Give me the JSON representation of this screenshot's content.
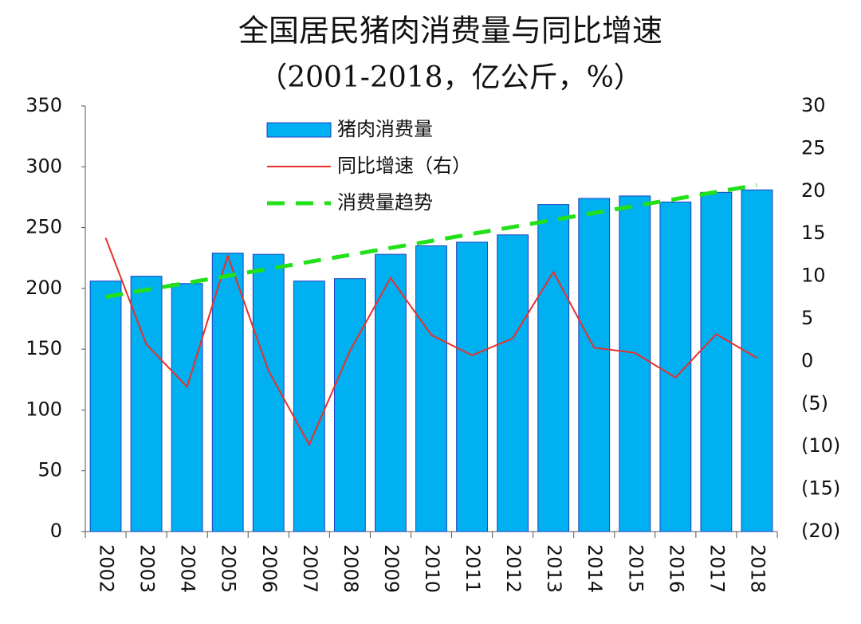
{
  "chart_data": {
    "type": "bar-line",
    "title": "全国居民猪肉消费量与同比增速",
    "subtitle": "（2001-2018，亿公斤，%）",
    "categories": [
      "2002",
      "2003",
      "2004",
      "2005",
      "2006",
      "2007",
      "2008",
      "2009",
      "2010",
      "2011",
      "2012",
      "2013",
      "2014",
      "2015",
      "2016",
      "2017",
      "2018"
    ],
    "series": [
      {
        "name": "猪肉消费量",
        "type": "bar",
        "color": "#00b0f0",
        "edge": "#1f3fbf",
        "values": [
          206,
          210,
          204,
          229,
          228,
          206,
          208,
          228,
          235,
          238,
          244,
          269,
          274,
          276,
          271,
          279,
          281
        ]
      },
      {
        "name": "同比增速（右）",
        "type": "line",
        "axis": "y2",
        "color": "#e8312a",
        "values": [
          14.5,
          2.0,
          -3.0,
          12.4,
          -1.1,
          -9.8,
          1.2,
          9.8,
          3.1,
          0.7,
          2.7,
          10.5,
          1.6,
          1.0,
          -1.9,
          3.2,
          0.4
        ]
      },
      {
        "name": "消费量趋势",
        "type": "dashed",
        "color": "#22e01a",
        "values": [
          193,
          198.8,
          204.5,
          210.3,
          216,
          221.8,
          227.5,
          233.3,
          239,
          244.8,
          250.5,
          256.3,
          262,
          267.8,
          273.5,
          279.3,
          285
        ]
      }
    ],
    "ylim": [
      0,
      350
    ],
    "yticks": [
      0,
      50,
      100,
      150,
      200,
      250,
      300,
      350
    ],
    "y2lim": [
      -20,
      30
    ],
    "y2ticks": [
      {
        "value": -20,
        "label": "(20)"
      },
      {
        "value": -15,
        "label": "(15)"
      },
      {
        "value": -10,
        "label": "(10)"
      },
      {
        "value": -5,
        "label": "(5)"
      },
      0,
      5,
      10,
      15,
      20,
      25,
      30
    ],
    "legend": "top-left"
  }
}
